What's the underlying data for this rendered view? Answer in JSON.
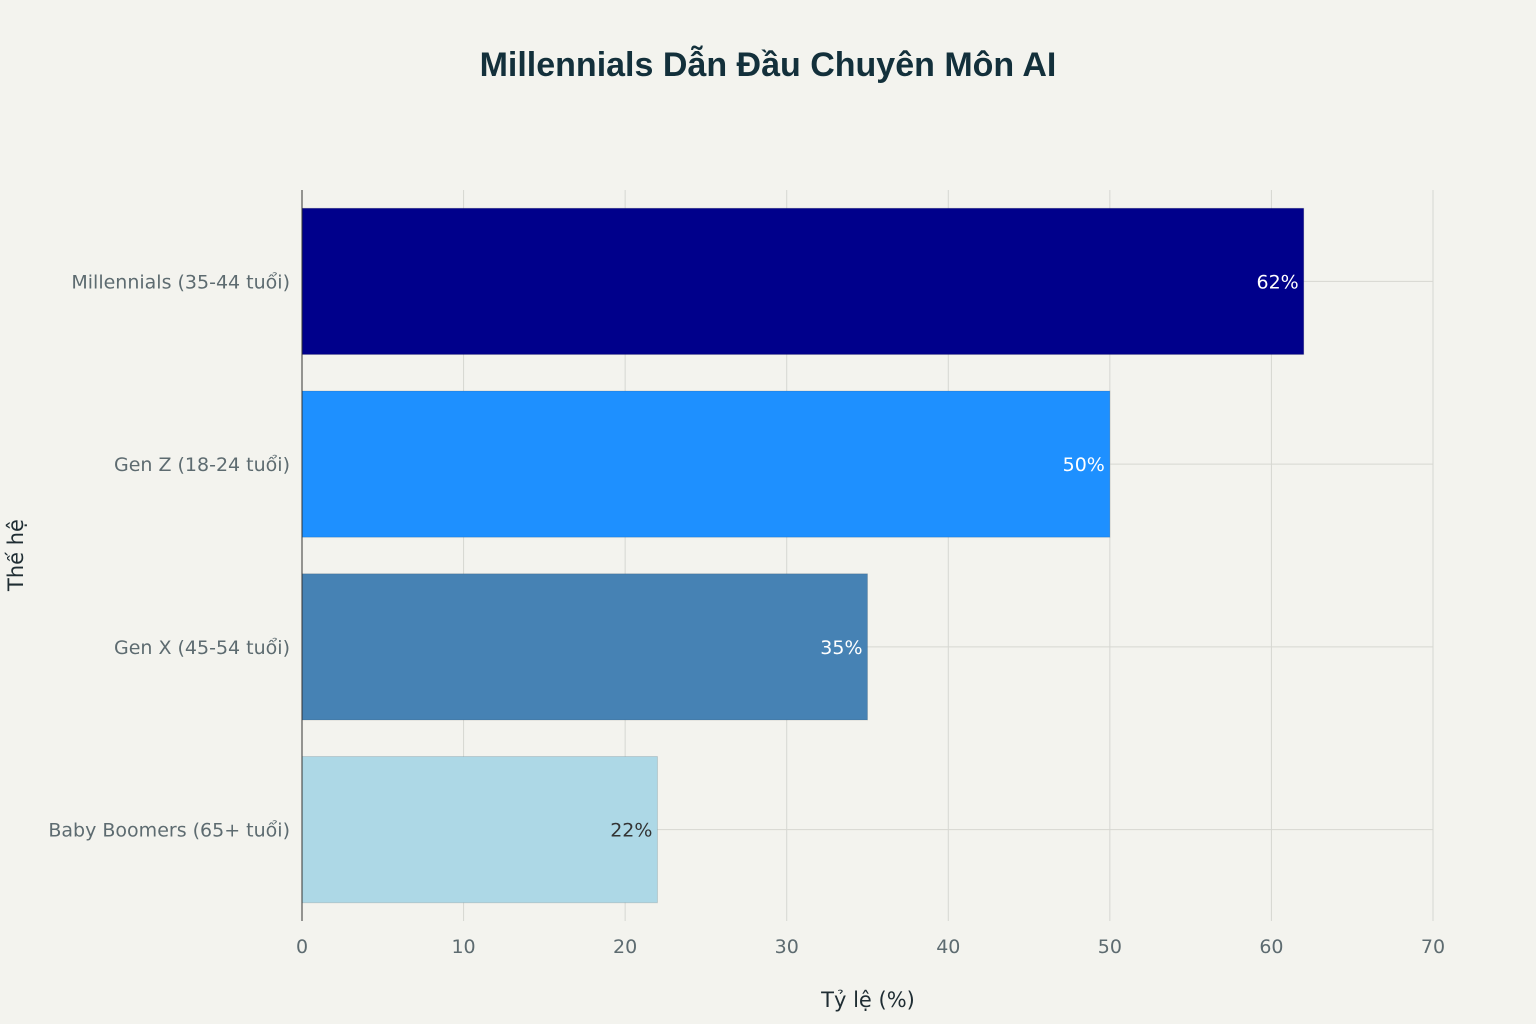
{
  "chart_data": {
    "type": "bar",
    "orientation": "horizontal",
    "title": "Millennials Dẫn Đầu Chuyên Môn AI",
    "xlabel": "Tỷ lệ (%)",
    "ylabel": "Thế hệ",
    "xlim": [
      0,
      70
    ],
    "xticks": [
      0,
      10,
      20,
      30,
      40,
      50,
      60,
      70
    ],
    "grid": true,
    "categories": [
      "Millennials (35-44 tuổi)",
      "Gen Z (18-24 tuổi)",
      "Gen X (45-54 tuổi)",
      "Baby Boomers (65+ tuổi)"
    ],
    "values": [
      62,
      50,
      35,
      22
    ],
    "data_labels": [
      "62%",
      "50%",
      "35%",
      "22%"
    ],
    "colors": [
      "#00008b",
      "#1e90ff",
      "#4682b4",
      "#add8e6"
    ],
    "label_colors": [
      "#ffffff",
      "#ffffff",
      "#ffffff",
      "#333333"
    ]
  }
}
